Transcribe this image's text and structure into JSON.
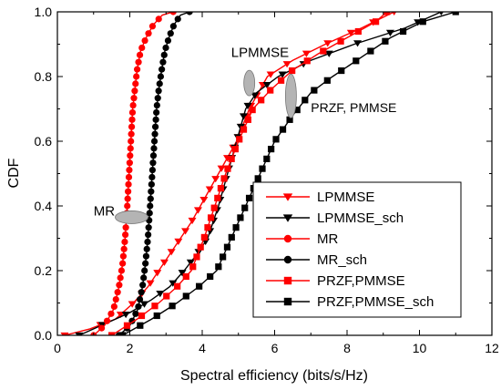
{
  "chart_data": {
    "type": "line",
    "xlabel": "Spectral efficiency (bits/s/Hz)",
    "ylabel": "CDF",
    "xlim": [
      0,
      12
    ],
    "ylim": [
      0,
      1.0
    ],
    "xticks": [
      0,
      2,
      4,
      6,
      8,
      10,
      12
    ],
    "yticks": [
      0.0,
      0.2,
      0.4,
      0.6,
      0.8,
      1.0
    ],
    "xtick_labels": [
      "0",
      "2",
      "4",
      "6",
      "8",
      "10",
      "12"
    ],
    "ytick_labels": [
      "0.0",
      "0.2",
      "0.4",
      "0.6",
      "0.8",
      "1.0"
    ],
    "grid": false,
    "legend_position": "center-right",
    "annotations": [
      {
        "text": "LPMMSE",
        "x": 4.8,
        "y": 0.86,
        "ellipse_x": 5.3,
        "ellipse_y": 0.78
      },
      {
        "text": "PRZF, PMMSE",
        "x": 7.0,
        "y": 0.69,
        "ellipse_x": 6.45,
        "ellipse_y": 0.74
      },
      {
        "text": "MR",
        "x": 1.0,
        "y": 0.37,
        "ellipse_x": 2.05,
        "ellipse_y": 0.365
      }
    ],
    "series": [
      {
        "name": "LPMMSE",
        "color": "#ff0000",
        "marker": "triangle-down",
        "x": [
          0.2,
          0.9,
          1.6,
          2.1,
          2.5,
          2.8,
          3.1,
          3.4,
          3.7,
          3.95,
          4.2,
          4.45,
          4.7,
          4.95,
          5.3,
          5.8,
          6.5,
          7.4,
          8.4,
          9.3
        ],
        "y": [
          0.0,
          0.02,
          0.05,
          0.1,
          0.15,
          0.2,
          0.25,
          0.3,
          0.35,
          0.4,
          0.45,
          0.5,
          0.55,
          0.6,
          0.7,
          0.8,
          0.85,
          0.9,
          0.95,
          1.0
        ]
      },
      {
        "name": "LPMMSE_sch",
        "color": "#000000",
        "marker": "triangle-down",
        "x": [
          0.6,
          1.2,
          2.0,
          2.6,
          3.1,
          3.5,
          3.85,
          4.15,
          4.45,
          4.7,
          4.95,
          5.2,
          5.5,
          6.1,
          7.0,
          8.2,
          9.6,
          10.6
        ],
        "y": [
          0.0,
          0.03,
          0.07,
          0.11,
          0.15,
          0.2,
          0.25,
          0.3,
          0.4,
          0.5,
          0.6,
          0.7,
          0.75,
          0.8,
          0.85,
          0.9,
          0.95,
          1.0
        ]
      },
      {
        "name": "MR",
        "color": "#ff0000",
        "marker": "circle",
        "x": [
          1.0,
          1.3,
          1.55,
          1.7,
          1.8,
          1.87,
          1.93,
          1.98,
          2.03,
          2.08,
          2.14,
          2.2,
          2.3,
          2.45,
          2.65,
          2.9,
          3.2
        ],
        "y": [
          0.0,
          0.03,
          0.08,
          0.15,
          0.22,
          0.3,
          0.4,
          0.5,
          0.6,
          0.7,
          0.76,
          0.82,
          0.88,
          0.92,
          0.96,
          0.99,
          1.0
        ]
      },
      {
        "name": "MR_sch",
        "color": "#000000",
        "marker": "circle",
        "x": [
          1.7,
          2.0,
          2.22,
          2.35,
          2.43,
          2.5,
          2.56,
          2.62,
          2.68,
          2.74,
          2.8,
          2.88,
          2.97,
          3.08,
          3.22,
          3.4,
          3.65
        ],
        "y": [
          0.0,
          0.03,
          0.08,
          0.15,
          0.22,
          0.3,
          0.4,
          0.5,
          0.6,
          0.7,
          0.76,
          0.82,
          0.88,
          0.92,
          0.96,
          0.99,
          1.0
        ]
      },
      {
        "name": "PRZF,PMMSE",
        "color": "#ff0000",
        "marker": "square",
        "x": [
          1.5,
          2.2,
          2.8,
          3.3,
          3.7,
          4.05,
          4.35,
          4.65,
          5.0,
          5.4,
          5.9,
          6.5,
          7.2,
          8.0,
          8.8,
          9.1
        ],
        "y": [
          0.0,
          0.05,
          0.1,
          0.15,
          0.2,
          0.3,
          0.4,
          0.5,
          0.6,
          0.7,
          0.76,
          0.82,
          0.87,
          0.92,
          0.97,
          1.0
        ]
      },
      {
        "name": "PRZF,PMMSE_sch",
        "color": "#000000",
        "marker": "square",
        "x": [
          1.8,
          2.6,
          3.3,
          3.9,
          4.4,
          4.8,
          5.2,
          5.6,
          6.0,
          6.5,
          7.0,
          7.6,
          8.4,
          9.2,
          10.1,
          11.0
        ],
        "y": [
          0.0,
          0.05,
          0.1,
          0.15,
          0.2,
          0.3,
          0.4,
          0.5,
          0.6,
          0.68,
          0.75,
          0.8,
          0.86,
          0.92,
          0.97,
          1.0
        ]
      }
    ]
  }
}
